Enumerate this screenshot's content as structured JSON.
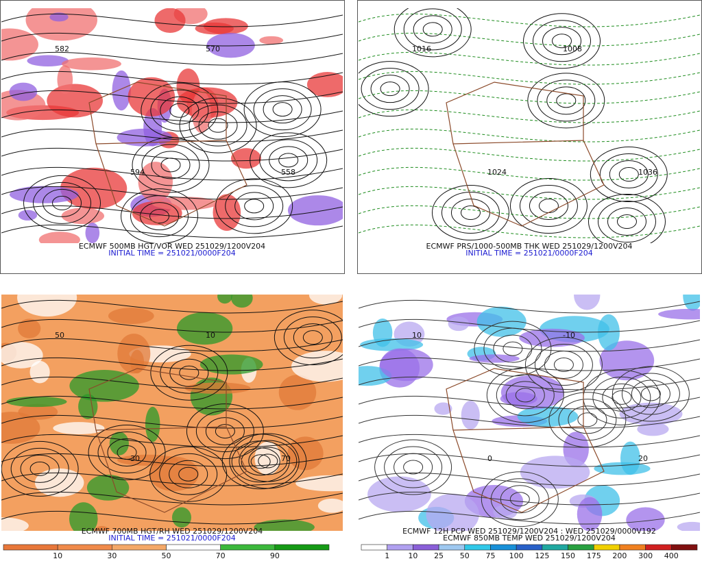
{
  "panels": [
    {
      "caption": [
        "ECMWF 500MB HGT/VOR WED 251029/1200V204",
        "INITIAL TIME = 251021/0000F204"
      ],
      "map_labels": [
        "582",
        "594",
        "570",
        "558"
      ]
    },
    {
      "caption": [
        "ECMWF PRS/1000-500MB THK WED 251029/1200V204",
        "INITIAL TIME = 251021/0000F204"
      ],
      "map_labels": [
        "1016",
        "1024",
        "1008",
        "1036"
      ]
    },
    {
      "caption": [
        "ECMWF 700MB HGT/RH WED 251029/1200V204",
        "INITIAL TIME = 251021/0000F204"
      ],
      "map_labels": [
        "50",
        "30",
        "10",
        "70"
      ],
      "colorbar": {
        "labels": [
          10,
          30,
          50,
          70,
          90
        ],
        "colors": [
          "#e8773a",
          "#f08a4a",
          "#f4a868",
          "#ffffff",
          "#3cb83c",
          "#159a15"
        ]
      }
    },
    {
      "caption": [
        "ECMWF 12H PCP WED 251029/1200V204 : WED 251029/0000V192",
        "ECMWF 850MB TEMP WED 251029/1200V204"
      ],
      "map_labels": [
        "10",
        "0",
        "-10",
        "20"
      ],
      "colorbar": {
        "labels": [
          1,
          10,
          25,
          50,
          75,
          100,
          125,
          150,
          175,
          200,
          300,
          400
        ],
        "colors": [
          "#ffffff",
          "#b0a0f0",
          "#8a5fd8",
          "#9ec8f0",
          "#30c8e8",
          "#1890d8",
          "#2860c8",
          "#20a8a0",
          "#28a040",
          "#f0d000",
          "#f08020",
          "#d02020",
          "#801010"
        ]
      }
    }
  ]
}
